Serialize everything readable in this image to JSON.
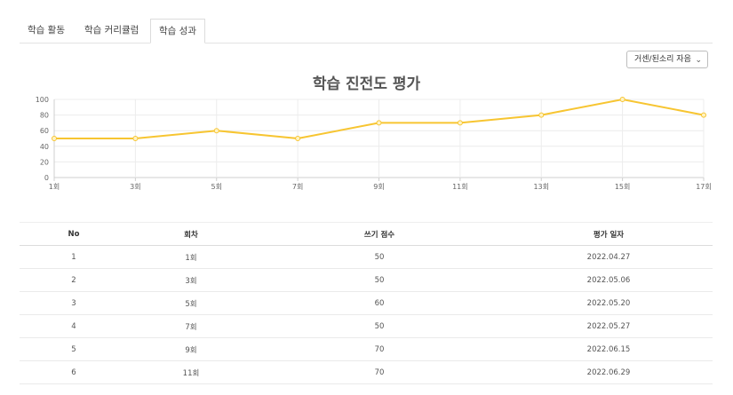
{
  "tabs": [
    {
      "label": "학습 활동",
      "active": false
    },
    {
      "label": "학습 커리큘럼",
      "active": false
    },
    {
      "label": "학습 성과",
      "active": true
    }
  ],
  "select": {
    "value": "거센/된소리 자음",
    "icon": "chevron-down-icon"
  },
  "chart_data": {
    "type": "line",
    "title": "학습 진전도 평가",
    "x": [
      "1회",
      "3회",
      "5회",
      "7회",
      "9회",
      "11회",
      "13회",
      "15회",
      "17회"
    ],
    "series": [
      {
        "values": [
          50,
          50,
          60,
          50,
          70,
          70,
          80,
          100,
          80
        ],
        "color": "#f7c531"
      }
    ],
    "ylim": [
      0,
      100
    ],
    "yticks": [
      0,
      20,
      40,
      60,
      80,
      100
    ],
    "grid": true,
    "xlabel": "",
    "ylabel": ""
  },
  "table": {
    "headers": [
      "No",
      "회차",
      "쓰기 점수",
      "평가 일자"
    ],
    "rows": [
      [
        "1",
        "1회",
        "50",
        "2022.04.27"
      ],
      [
        "2",
        "3회",
        "50",
        "2022.05.06"
      ],
      [
        "3",
        "5회",
        "60",
        "2022.05.20"
      ],
      [
        "4",
        "7회",
        "50",
        "2022.05.27"
      ],
      [
        "5",
        "9회",
        "70",
        "2022.06.15"
      ],
      [
        "6",
        "11회",
        "70",
        "2022.06.29"
      ]
    ]
  }
}
